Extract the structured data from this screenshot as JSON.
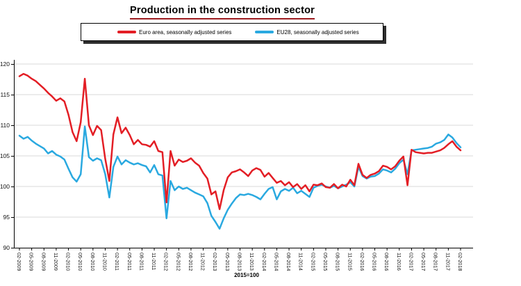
{
  "title": "Production in the construction sector",
  "footnote": "2015=100",
  "legend": {
    "items": [
      {
        "label": "Euro area, seasonally adjusted series",
        "color": "#e31e25"
      },
      {
        "label": "EU28, seasonally adjusted series",
        "color": "#2aa9e0"
      }
    ]
  },
  "chart_data": {
    "type": "line",
    "title": "Production in the construction sector",
    "note": "2015=100",
    "x_unit": "monthly observations from 02-2009 to 02-2018",
    "grid": "horizontal",
    "legend_position": "top",
    "ylim": [
      90,
      121
    ],
    "yticks": [
      90,
      95,
      100,
      105,
      110,
      115,
      120
    ],
    "categories": [
      "02-2009",
      "05-2009",
      "08-2009",
      "11-2009",
      "02-2010",
      "05-2010",
      "08-2010",
      "11-2010",
      "02-2011",
      "05-2011",
      "08-2011",
      "11-2011",
      "02-2012",
      "05-2012",
      "08-2012",
      "11-2012",
      "02-2013",
      "05-2013",
      "08-2013",
      "11-2013",
      "02-2014",
      "05-2014",
      "08-2014",
      "11-2014",
      "02-2015",
      "05-2015",
      "08-2015",
      "11-2015",
      "02-2016",
      "05-2016",
      "08-2016",
      "11-2016",
      "02-2017",
      "05-2017",
      "08-2017",
      "11-2017",
      "02-2018"
    ],
    "series": [
      {
        "name": "Euro area, seasonally adjusted series",
        "color": "#e31e25",
        "values": [
          118.0,
          118.4,
          118.1,
          117.6,
          117.2,
          116.6,
          116.0,
          115.3,
          114.7,
          114.0,
          114.4,
          113.9,
          111.7,
          108.9,
          107.4,
          110.5,
          117.6,
          110.0,
          108.4,
          109.9,
          109.2,
          104.5,
          100.9,
          108.5,
          111.3,
          108.7,
          109.6,
          108.4,
          106.9,
          107.6,
          106.9,
          106.8,
          106.5,
          107.4,
          105.8,
          105.6,
          97.4,
          105.8,
          103.4,
          104.4,
          104.0,
          104.2,
          104.6,
          103.9,
          103.4,
          102.2,
          101.3,
          98.7,
          99.2,
          96.3,
          99.4,
          101.5,
          102.3,
          102.5,
          102.8,
          102.3,
          101.7,
          102.6,
          103.0,
          102.7,
          101.6,
          102.2,
          101.4,
          100.6,
          100.9,
          100.2,
          100.7,
          99.9,
          100.4,
          99.6,
          100.2,
          99.2,
          100.3,
          100.2,
          100.5,
          99.9,
          99.8,
          100.4,
          99.7,
          100.3,
          100.0,
          101.1,
          100.2,
          103.7,
          101.9,
          101.4,
          101.9,
          102.1,
          102.5,
          103.4,
          103.2,
          102.8,
          103.3,
          104.2,
          104.9,
          100.2,
          106.0,
          105.6,
          105.5,
          105.4,
          105.5,
          105.5,
          105.7,
          105.9,
          106.3,
          106.9,
          107.4,
          106.5,
          105.9
        ]
      },
      {
        "name": "EU28, seasonally adjusted series",
        "color": "#2aa9e0",
        "values": [
          108.3,
          107.8,
          108.1,
          107.5,
          107.0,
          106.6,
          106.2,
          105.4,
          105.8,
          105.2,
          104.9,
          104.4,
          102.9,
          101.5,
          100.8,
          102.0,
          109.8,
          104.8,
          104.2,
          104.6,
          104.3,
          102.0,
          98.2,
          103.2,
          104.9,
          103.6,
          104.3,
          103.9,
          103.6,
          103.8,
          103.5,
          103.3,
          102.3,
          103.5,
          102.0,
          101.8,
          94.8,
          100.9,
          99.4,
          100.0,
          99.6,
          99.8,
          99.4,
          99.0,
          98.7,
          98.4,
          97.3,
          95.2,
          94.2,
          93.1,
          94.8,
          96.2,
          97.2,
          98.1,
          98.7,
          98.6,
          98.8,
          98.6,
          98.3,
          97.9,
          98.8,
          99.6,
          99.9,
          97.9,
          99.2,
          99.6,
          99.3,
          99.8,
          98.9,
          99.3,
          98.8,
          98.3,
          99.8,
          100.1,
          100.3,
          100.0,
          99.8,
          100.1,
          99.7,
          100.0,
          100.3,
          100.7,
          100.0,
          103.2,
          101.7,
          101.3,
          101.6,
          101.7,
          102.1,
          102.8,
          102.6,
          102.3,
          102.9,
          103.8,
          104.4,
          102.0,
          105.9,
          106.0,
          106.1,
          106.2,
          106.3,
          106.5,
          107.0,
          107.2,
          107.6,
          108.5,
          108.0,
          107.1,
          106.4
        ]
      }
    ]
  }
}
